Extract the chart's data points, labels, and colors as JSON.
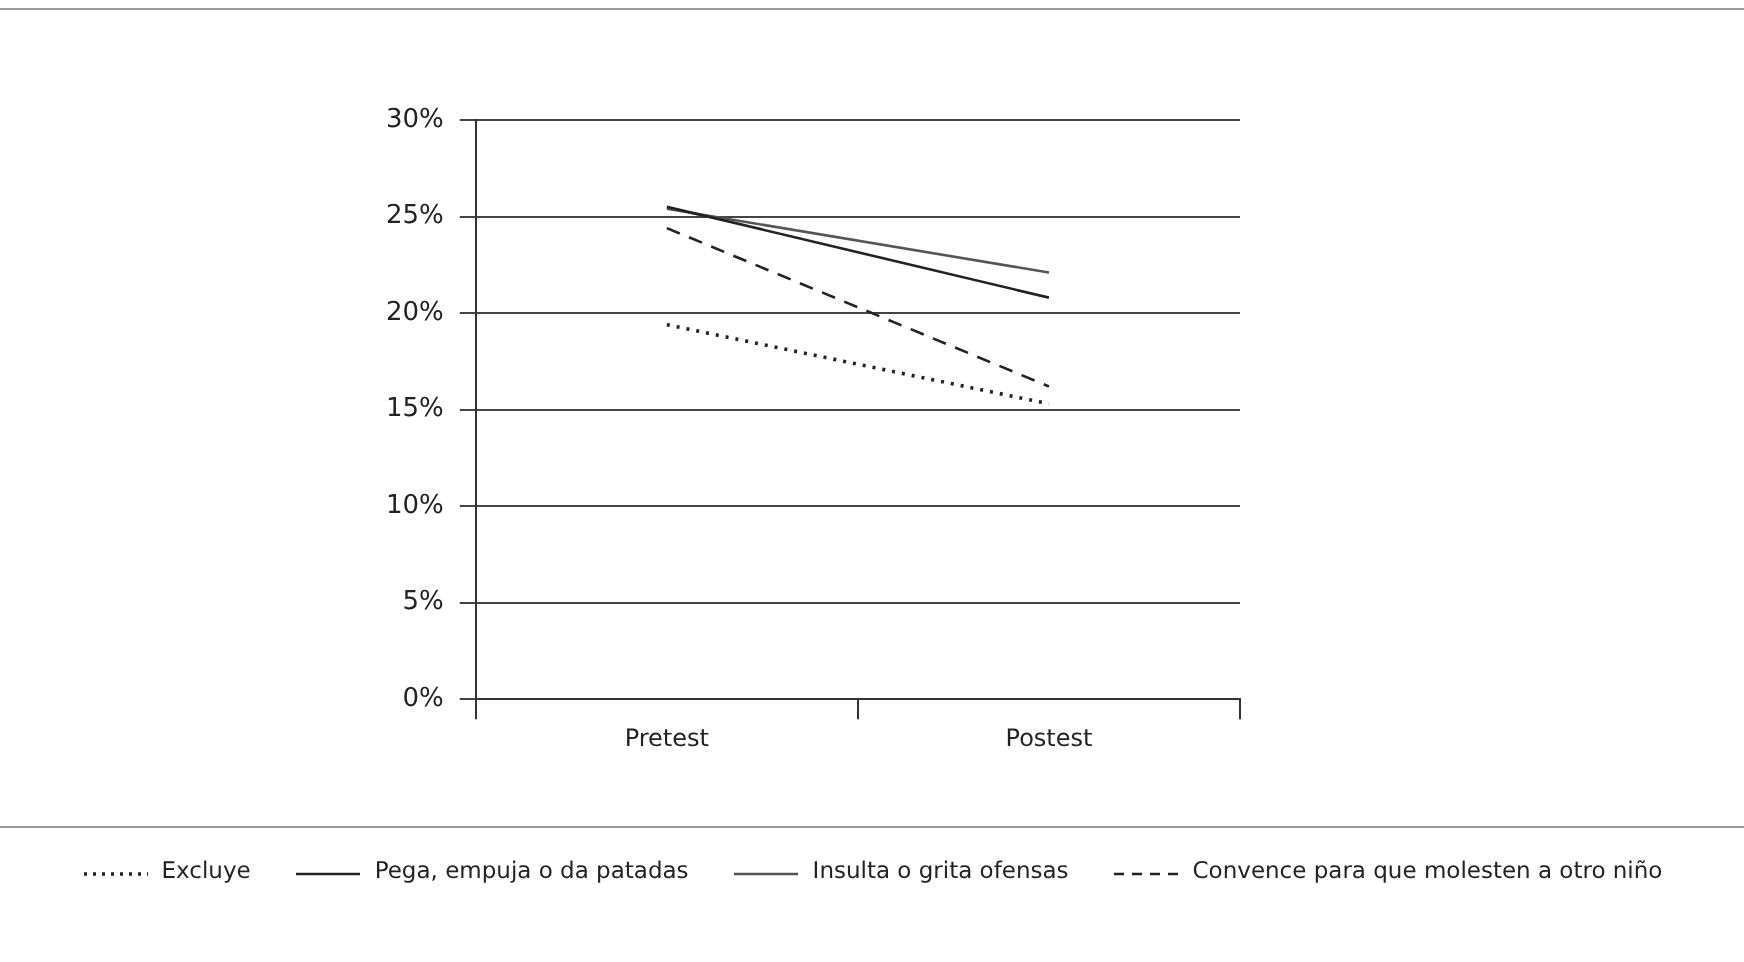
{
  "chart_data": {
    "type": "line",
    "categories": [
      "Pretest",
      "Postest"
    ],
    "series": [
      {
        "name": "Excluye",
        "color": "#222222",
        "line_style": "dotted",
        "values": [
          19.4,
          15.3
        ]
      },
      {
        "name": "Pega, empuja o da patadas",
        "color": "#222222",
        "line_style": "solid",
        "values": [
          25.5,
          20.8
        ]
      },
      {
        "name": "Insulta o grita ofensas",
        "color": "#555555",
        "line_style": "solid",
        "values": [
          25.4,
          22.1
        ]
      },
      {
        "name": "Convence para que molesten a otro niño",
        "color": "#222222",
        "line_style": "dashed",
        "values": [
          24.4,
          16.2
        ]
      }
    ],
    "ylim": [
      0,
      30
    ],
    "yticks": [
      {
        "value": 0,
        "label": "0%"
      },
      {
        "value": 5,
        "label": "5%"
      },
      {
        "value": 10,
        "label": "10%"
      },
      {
        "value": 15,
        "label": "15%"
      },
      {
        "value": 20,
        "label": "20%"
      },
      {
        "value": 25,
        "label": "25%"
      },
      {
        "value": 30,
        "label": "30%"
      }
    ],
    "grid": "y",
    "legend": "bottom",
    "marker": "none"
  }
}
